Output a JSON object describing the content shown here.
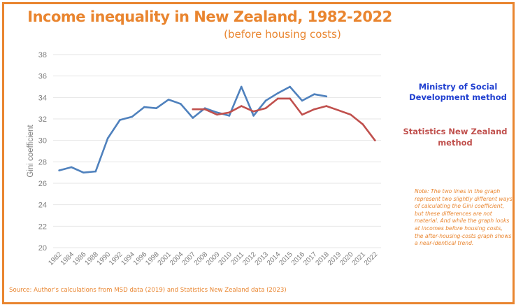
{
  "header": {
    "title": "Income inequality in New Zealand, 1982-2022",
    "subtitle": "(before housing costs)"
  },
  "legend": {
    "msd_line1": "Ministry of Social",
    "msd_line2": "Development method",
    "snz_line1": "Statistics New Zealand",
    "snz_line2": "method"
  },
  "note": "Note: The two lines in the graph represent two slightly different ways of calculating the Gini coefficient, but these differences are not material. And while the graph looks at incomes before housing costs, the after-housing-costs graph shows a near-identical trend.",
  "source": "Source: Author's calculations from MSD data (2019) and Statistics New Zealand data (2023)",
  "colors": {
    "accent": "#e9852f",
    "msd": "#4f81bd",
    "snz": "#c0504d",
    "msd_label": "#1f3fd0",
    "snz_label": "#c0504d",
    "grid": "#e6e6e6",
    "tick": "#7f7f7f"
  },
  "chart_data": {
    "type": "line",
    "title": "Income inequality in New Zealand, 1982-2022",
    "subtitle": "(before housing costs)",
    "xlabel": "",
    "ylabel": "Gini coefficient",
    "ylim": [
      20,
      38
    ],
    "yticks": [
      20,
      22,
      24,
      26,
      28,
      30,
      32,
      34,
      36,
      38
    ],
    "grid": true,
    "legend_position": "right",
    "categories": [
      "1982",
      "1984",
      "1986",
      "1988",
      "1990",
      "1992",
      "1994",
      "1996",
      "1998",
      "2001",
      "2004",
      "2007",
      "2008",
      "2009",
      "2010",
      "2011",
      "2012",
      "2013",
      "2014",
      "2015",
      "2016",
      "2017",
      "2018",
      "2019",
      "2020",
      "2021",
      "2022"
    ],
    "series": [
      {
        "name": "Ministry of Social Development method",
        "color": "#4f81bd",
        "values": [
          27.2,
          27.5,
          27.0,
          27.1,
          30.2,
          31.9,
          32.2,
          33.1,
          33.0,
          33.8,
          33.4,
          32.1,
          33.0,
          32.6,
          32.3,
          35.0,
          32.3,
          33.7,
          34.4,
          35.0,
          33.7,
          34.3,
          34.1,
          null,
          null,
          null,
          null
        ]
      },
      {
        "name": "Statistics New Zealand method",
        "color": "#c0504d",
        "values": [
          null,
          null,
          null,
          null,
          null,
          null,
          null,
          null,
          null,
          null,
          null,
          32.9,
          32.9,
          32.4,
          32.6,
          33.2,
          32.7,
          33.0,
          33.9,
          33.9,
          32.4,
          32.9,
          33.2,
          32.8,
          32.4,
          31.5,
          30.0
        ]
      }
    ]
  }
}
